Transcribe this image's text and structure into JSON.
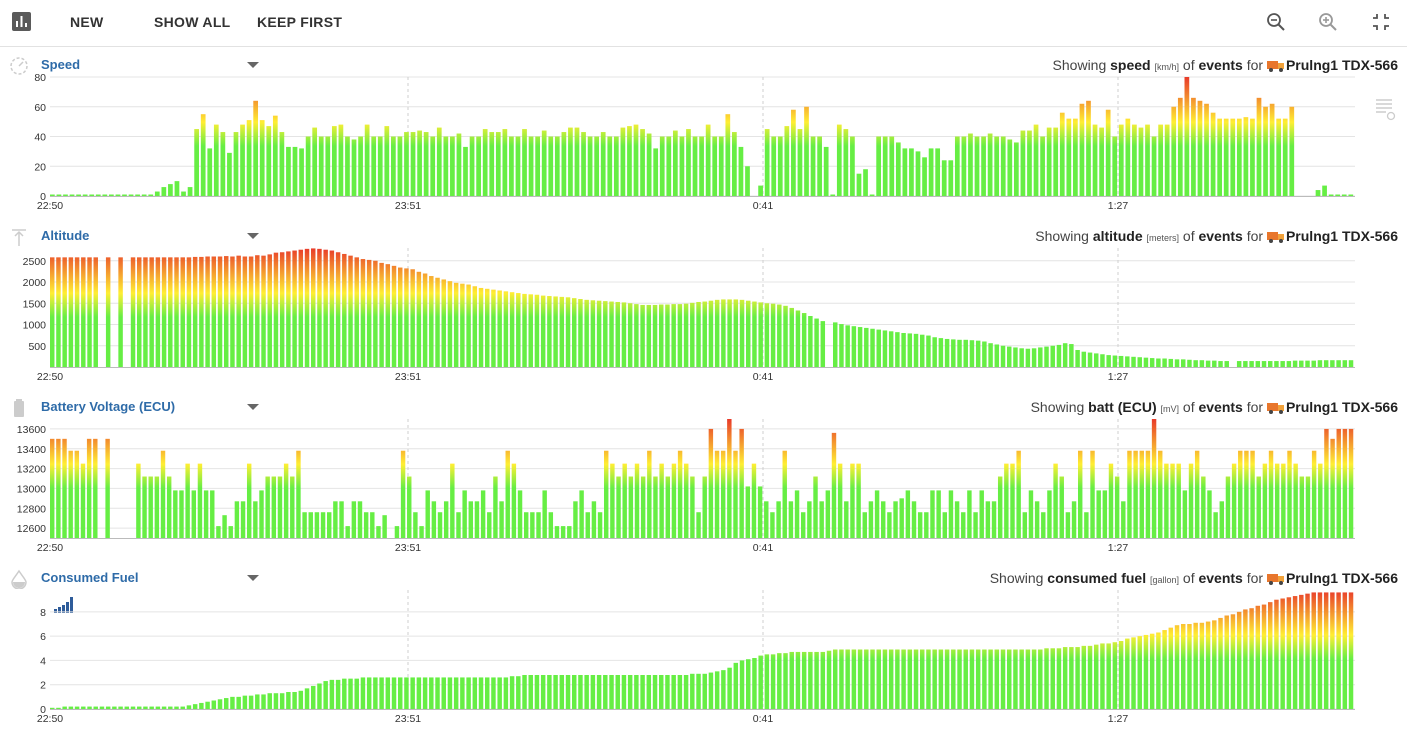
{
  "toolbar": {
    "app_icon": "bar-chart-icon",
    "new_label": "NEW",
    "show_all_label": "SHOW ALL",
    "keep_first_label": "KEEP FIRST",
    "zoom_out_icon": "zoom-out-icon",
    "zoom_in_icon": "zoom-in-icon",
    "fullscreen_exit_icon": "fullscreen-exit-icon"
  },
  "common": {
    "showing_prefix": "Showing",
    "of_text": "of",
    "events_text": "events",
    "for_text": "for",
    "vehicle": "Prulng1 TDX-566",
    "vehicle_icon": "truck-icon"
  },
  "time_labels": [
    "22:50",
    "23:51",
    "0:41",
    "1:27"
  ],
  "colors": {
    "low": "#66ee44",
    "mid": "#ffee33",
    "high": "#e83a2a",
    "title": "#2e6ba8",
    "grid": "#e4e4e4"
  },
  "panels": [
    {
      "id": "speed",
      "title": "Speed",
      "icon": "speedometer-icon",
      "measure": "speed",
      "unit": "[km/h]",
      "chart_data": {
        "type": "bar",
        "ylim": [
          0,
          80
        ],
        "yticks": [
          0,
          20,
          40,
          60,
          80
        ],
        "gap_after": [],
        "values": [
          1,
          1,
          1,
          1,
          1,
          1,
          1,
          1,
          1,
          1,
          1,
          1,
          1,
          1,
          1,
          1,
          3,
          6,
          8,
          10,
          3,
          6,
          45,
          55,
          32,
          48,
          43,
          29,
          43,
          48,
          51,
          64,
          51,
          47,
          54,
          43,
          33,
          33,
          32,
          40,
          46,
          40,
          40,
          47,
          48,
          40,
          38,
          40,
          48,
          40,
          40,
          47,
          40,
          40,
          43,
          43,
          44,
          43,
          40,
          46,
          40,
          40,
          42,
          33,
          40,
          40,
          45,
          43,
          43,
          45,
          40,
          40,
          45,
          40,
          40,
          44,
          40,
          40,
          43,
          46,
          46,
          43,
          40,
          40,
          43,
          40,
          40,
          46,
          47,
          48,
          45,
          42,
          32,
          40,
          40,
          44,
          40,
          45,
          40,
          40,
          48,
          40,
          40,
          55,
          43,
          33,
          20,
          0,
          7,
          45,
          40,
          40,
          47,
          58,
          45,
          60,
          40,
          40,
          33,
          1,
          48,
          45,
          40,
          15,
          18,
          1,
          40,
          40,
          40,
          36,
          32,
          32,
          30,
          26,
          32,
          32,
          24,
          24,
          40,
          40,
          42,
          40,
          40,
          42,
          40,
          40,
          38,
          36,
          44,
          44,
          48,
          40,
          46,
          46,
          56,
          52,
          52,
          62,
          64,
          48,
          46,
          58,
          40,
          48,
          52,
          48,
          46,
          48,
          40,
          48,
          48,
          60,
          66,
          80,
          66,
          64,
          62,
          56,
          52,
          52,
          52,
          52,
          53,
          52,
          66,
          60,
          62,
          52,
          52,
          60,
          0,
          0,
          0,
          4,
          7,
          1,
          1,
          1,
          1
        ]
      }
    },
    {
      "id": "altitude",
      "title": "Altitude",
      "icon": "altitude-icon",
      "measure": "altitude",
      "unit": "[meters]",
      "chart_data": {
        "type": "bar",
        "ylim": [
          0,
          2800
        ],
        "yticks": [
          500,
          1000,
          1500,
          2000,
          2500
        ],
        "gap_after": [],
        "values": [
          2580,
          2580,
          2580,
          2580,
          2580,
          2580,
          2580,
          2580,
          0,
          2580,
          0,
          2580,
          0,
          2580,
          2580,
          2580,
          2580,
          2580,
          2580,
          2580,
          2580,
          2580,
          2580,
          2590,
          2590,
          2600,
          2600,
          2600,
          2610,
          2600,
          2620,
          2600,
          2600,
          2630,
          2620,
          2650,
          2690,
          2700,
          2720,
          2740,
          2760,
          2780,
          2790,
          2780,
          2760,
          2740,
          2700,
          2660,
          2620,
          2580,
          2540,
          2520,
          2500,
          2450,
          2420,
          2380,
          2340,
          2320,
          2300,
          2240,
          2200,
          2140,
          2100,
          2060,
          2020,
          1980,
          1960,
          1940,
          1900,
          1860,
          1840,
          1820,
          1800,
          1780,
          1760,
          1740,
          1720,
          1710,
          1700,
          1680,
          1670,
          1660,
          1650,
          1640,
          1620,
          1600,
          1580,
          1570,
          1560,
          1550,
          1540,
          1530,
          1520,
          1500,
          1480,
          1460,
          1460,
          1460,
          1470,
          1470,
          1480,
          1480,
          1490,
          1510,
          1530,
          1540,
          1560,
          1580,
          1590,
          1590,
          1590,
          1580,
          1560,
          1540,
          1520,
          1500,
          1490,
          1470,
          1440,
          1390,
          1330,
          1270,
          1200,
          1140,
          1080,
          0,
          1050,
          1010,
          980,
          960,
          940,
          920,
          900,
          880,
          860,
          840,
          820,
          800,
          790,
          780,
          760,
          740,
          700,
          680,
          660,
          650,
          640,
          640,
          630,
          620,
          600,
          560,
          530,
          500,
          480,
          460,
          440,
          430,
          440,
          460,
          480,
          500,
          520,
          560,
          540,
          400,
          360,
          340,
          320,
          300,
          280,
          270,
          260,
          250,
          240,
          230,
          220,
          210,
          200,
          200,
          190,
          180,
          180,
          170,
          160,
          160,
          150,
          150,
          140,
          140,
          0,
          140,
          140,
          140,
          140,
          140,
          140,
          140,
          140,
          140,
          150,
          150,
          150,
          150,
          160,
          160,
          160,
          160,
          160,
          160
        ]
      }
    },
    {
      "id": "battery",
      "title": "Battery Voltage (ECU)",
      "icon": "battery-icon",
      "measure": "batt (ECU)",
      "unit": "[mV]",
      "chart_data": {
        "type": "bar",
        "ylim": [
          12500,
          13700
        ],
        "yticks": [
          12600,
          12800,
          13000,
          13200,
          13400,
          13600
        ],
        "gap_after": [],
        "values": [
          13500,
          13500,
          13500,
          13380,
          13380,
          13250,
          13500,
          13500,
          12500,
          13500,
          12500,
          12500,
          12500,
          12500,
          13250,
          13120,
          13120,
          13120,
          13380,
          13120,
          12980,
          12980,
          13250,
          12980,
          13250,
          12980,
          12980,
          12620,
          12730,
          12620,
          12870,
          12870,
          13250,
          12870,
          12980,
          13120,
          13120,
          13120,
          13250,
          13120,
          13380,
          12760,
          12760,
          12760,
          12760,
          12760,
          12870,
          12870,
          12620,
          12870,
          12870,
          12760,
          12760,
          12620,
          12730,
          12500,
          12620,
          13380,
          13120,
          12760,
          12620,
          12980,
          12870,
          12760,
          12870,
          13250,
          12760,
          12980,
          12870,
          12870,
          12980,
          12760,
          13120,
          12870,
          13380,
          13250,
          12980,
          12760,
          12760,
          12760,
          12980,
          12760,
          12620,
          12620,
          12620,
          12870,
          12980,
          12760,
          12870,
          12760,
          13380,
          13250,
          13120,
          13250,
          13120,
          13250,
          13120,
          13380,
          13120,
          13250,
          13120,
          13250,
          13380,
          13250,
          13120,
          12760,
          13120,
          13600,
          13380,
          13380,
          13720,
          13380,
          13600,
          13020,
          13250,
          13020,
          12870,
          12760,
          12870,
          13380,
          12870,
          12980,
          12760,
          12870,
          13120,
          12870,
          12980,
          13560,
          13250,
          12870,
          13250,
          13250,
          12760,
          12870,
          12980,
          12870,
          12760,
          12870,
          12900,
          12980,
          12870,
          12760,
          12760,
          12980,
          12980,
          12760,
          12980,
          12870,
          12760,
          12980,
          12760,
          12980,
          12870,
          12870,
          13120,
          13250,
          13250,
          13380,
          12760,
          12980,
          12870,
          12760,
          12980,
          13250,
          13120,
          12760,
          12870,
          13380,
          12760,
          13380,
          12980,
          12980,
          13250,
          13120,
          12870,
          13380,
          13380,
          13380,
          13380,
          13720,
          13380,
          13250,
          13250,
          13250,
          12980,
          13250,
          13380,
          13120,
          12980,
          12760,
          12870,
          13120,
          13250,
          13380,
          13380,
          13380,
          13120,
          13250,
          13380,
          13250,
          13250,
          13380,
          13250,
          13120,
          13120,
          13380,
          13250,
          13600,
          13500,
          13600,
          13600,
          13600
        ]
      }
    },
    {
      "id": "fuel",
      "title": "Consumed Fuel",
      "icon": "drop-icon",
      "measure": "consumed fuel",
      "unit": "[gallon]",
      "legend_icon": "signal-bars-icon",
      "chart_data": {
        "type": "bar",
        "ylim": [
          0,
          9.8
        ],
        "yticks": [
          0,
          2,
          4,
          6,
          8
        ],
        "gap_after": [],
        "values": [
          0.1,
          0.1,
          0.2,
          0.2,
          0.2,
          0.2,
          0.2,
          0.2,
          0.2,
          0.2,
          0.2,
          0.2,
          0.2,
          0.2,
          0.2,
          0.2,
          0.2,
          0.2,
          0.2,
          0.2,
          0.2,
          0.2,
          0.3,
          0.4,
          0.5,
          0.6,
          0.7,
          0.8,
          0.9,
          1.0,
          1.0,
          1.1,
          1.1,
          1.2,
          1.2,
          1.3,
          1.3,
          1.3,
          1.4,
          1.4,
          1.5,
          1.7,
          1.9,
          2.1,
          2.3,
          2.4,
          2.4,
          2.5,
          2.5,
          2.5,
          2.6,
          2.6,
          2.6,
          2.6,
          2.6,
          2.6,
          2.6,
          2.6,
          2.6,
          2.6,
          2.6,
          2.6,
          2.6,
          2.6,
          2.6,
          2.6,
          2.6,
          2.6,
          2.6,
          2.6,
          2.6,
          2.6,
          2.6,
          2.6,
          2.7,
          2.7,
          2.8,
          2.8,
          2.8,
          2.8,
          2.8,
          2.8,
          2.8,
          2.8,
          2.8,
          2.8,
          2.8,
          2.8,
          2.8,
          2.8,
          2.8,
          2.8,
          2.8,
          2.8,
          2.8,
          2.8,
          2.8,
          2.8,
          2.8,
          2.8,
          2.8,
          2.8,
          2.8,
          2.9,
          2.9,
          2.9,
          3.0,
          3.1,
          3.2,
          3.4,
          3.8,
          4.0,
          4.1,
          4.2,
          4.4,
          4.5,
          4.5,
          4.6,
          4.6,
          4.7,
          4.7,
          4.7,
          4.7,
          4.7,
          4.7,
          4.8,
          4.9,
          4.9,
          4.9,
          4.9,
          4.9,
          4.9,
          4.9,
          4.9,
          4.9,
          4.9,
          4.9,
          4.9,
          4.9,
          4.9,
          4.9,
          4.9,
          4.9,
          4.9,
          4.9,
          4.9,
          4.9,
          4.9,
          4.9,
          4.9,
          4.9,
          4.9,
          4.9,
          4.9,
          4.9,
          4.9,
          4.9,
          4.9,
          4.9,
          4.9,
          5.0,
          5.0,
          5.0,
          5.1,
          5.1,
          5.1,
          5.2,
          5.2,
          5.3,
          5.4,
          5.4,
          5.5,
          5.6,
          5.8,
          5.9,
          6.0,
          6.1,
          6.2,
          6.3,
          6.5,
          6.7,
          6.9,
          7.0,
          7.0,
          7.1,
          7.1,
          7.2,
          7.3,
          7.5,
          7.7,
          7.8,
          8.0,
          8.2,
          8.3,
          8.5,
          8.6,
          8.8,
          9.0,
          9.1,
          9.2,
          9.3,
          9.4,
          9.5,
          9.6,
          9.6,
          9.6,
          9.6,
          9.6,
          9.6,
          9.6
        ]
      }
    }
  ]
}
